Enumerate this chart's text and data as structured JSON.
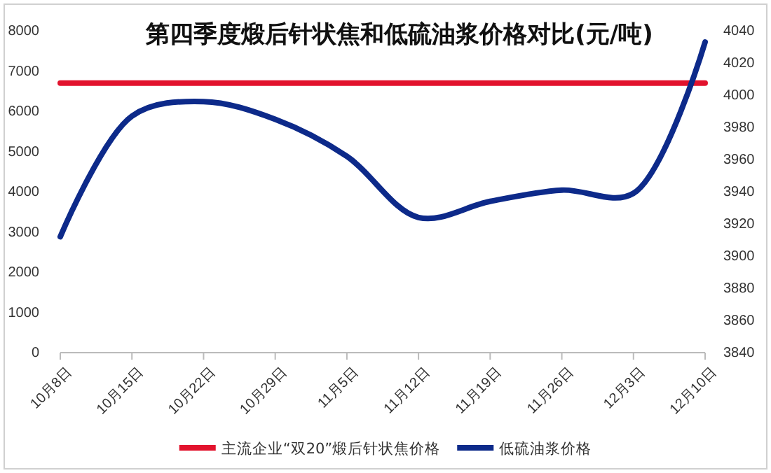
{
  "chart_data": {
    "type": "line",
    "title": "第四季度煅后针状焦和低硫油浆价格对比(元/吨)",
    "categories": [
      "10月8日",
      "10月15日",
      "10月22日",
      "10月29日",
      "11月5日",
      "11月12日",
      "11月19日",
      "11月26日",
      "12月3日",
      "12月10日"
    ],
    "series": [
      {
        "name": "主流企业“双20”煅后针状焦价格",
        "color": "#e2132d",
        "values": [
          6700,
          6700,
          6700,
          6700,
          6700,
          6700,
          6700,
          6700,
          6700,
          6700
        ]
      },
      {
        "name": "低硫油浆价格",
        "color": "#0d2a8a",
        "axis": "y2",
        "values": [
          3912,
          3987,
          3996,
          3985,
          3962,
          3924,
          3934,
          3941,
          3939,
          4033
        ]
      }
    ],
    "ylim": [
      0,
      8000
    ],
    "yticks": [
      0,
      1000,
      2000,
      3000,
      4000,
      5000,
      6000,
      7000,
      8000
    ],
    "y2lim": [
      3840,
      4040
    ],
    "y2ticks": [
      3840,
      3860,
      3880,
      3900,
      3920,
      3940,
      3960,
      3980,
      4000,
      4020,
      4040
    ],
    "grid": false,
    "legend": "bottom",
    "marker": "none",
    "line_style": "solid"
  }
}
